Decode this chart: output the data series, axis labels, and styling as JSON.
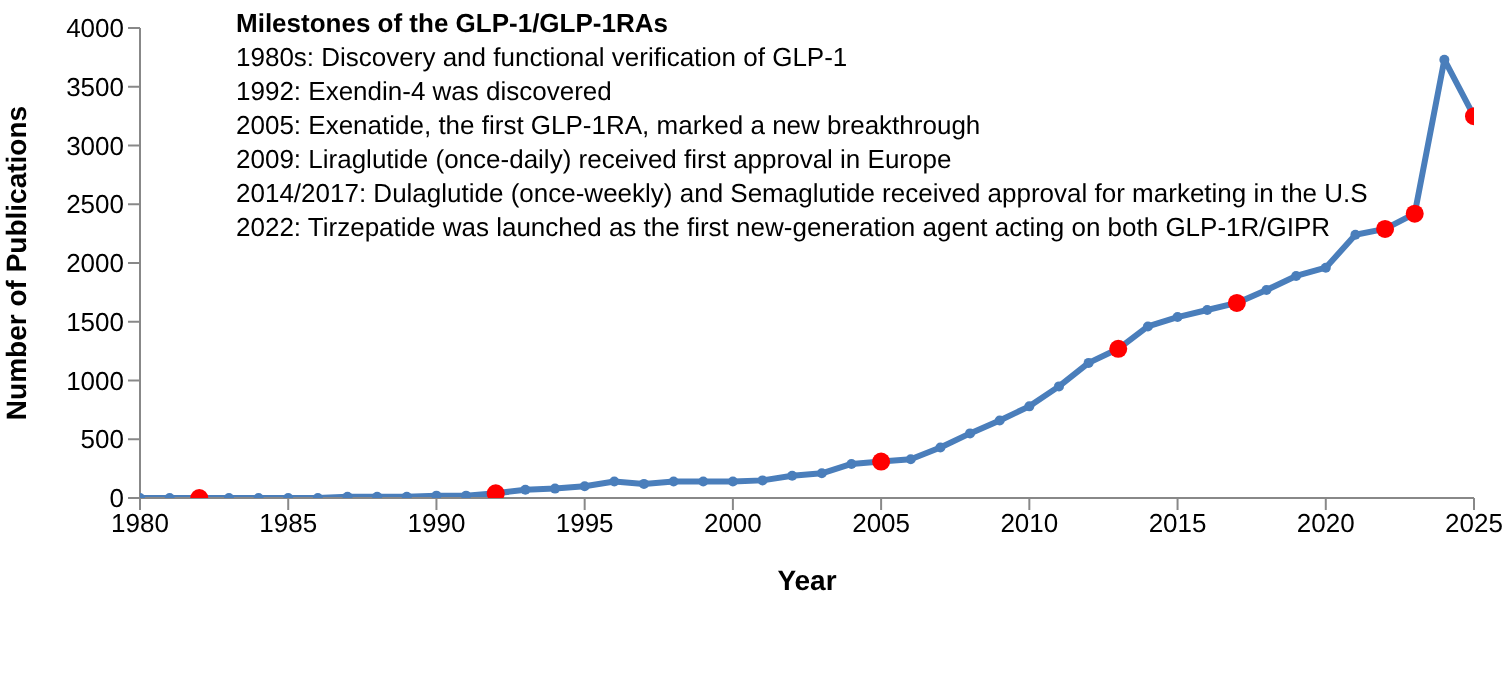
{
  "chart_data": {
    "type": "line",
    "title": "Milestones of the GLP-1/GLP-1RAs",
    "xlabel": "Year",
    "ylabel": "Number of Publications",
    "annotations": [
      "1980s: Discovery and functional verification of GLP-1",
      "1992: Exendin-4 was discovered",
      "2005: Exenatide, the first GLP-1RA, marked a new breakthrough",
      "2009: Liraglutide (once-daily) received first approval in Europe",
      "2014/2017: Dulaglutide (once-weekly) and Semaglutide received approval for marketing in the U.S",
      "2022: Tirzepatide was  launched as the first new-generation agent acting on both GLP-1R/GIPR"
    ],
    "x": [
      1980,
      1981,
      1982,
      1983,
      1984,
      1985,
      1986,
      1987,
      1988,
      1989,
      1990,
      1991,
      1992,
      1993,
      1994,
      1995,
      1996,
      1997,
      1998,
      1999,
      2000,
      2001,
      2002,
      2003,
      2004,
      2005,
      2006,
      2007,
      2008,
      2009,
      2010,
      2011,
      2012,
      2013,
      2014,
      2015,
      2016,
      2017,
      2018,
      2019,
      2020,
      2021,
      2022,
      2023,
      2024,
      2025
    ],
    "series": [
      {
        "color": "#4a7ebb",
        "marker": "circle",
        "values": [
          0,
          0,
          0,
          0,
          0,
          0,
          0,
          10,
          10,
          10,
          20,
          20,
          40,
          70,
          80,
          100,
          140,
          120,
          140,
          140,
          140,
          150,
          190,
          210,
          290,
          310,
          330,
          430,
          550,
          660,
          780,
          950,
          1150,
          1270,
          1460,
          1540,
          1600,
          1660,
          1770,
          1890,
          1960,
          2240,
          2290,
          2420,
          3730,
          3250
        ]
      },
      {
        "type": "scatter",
        "color": "#ff0000",
        "marker": "circle",
        "x": [
          1982,
          1992,
          2005,
          2013,
          2017,
          2022,
          2023,
          2025
        ],
        "values": [
          0,
          40,
          310,
          1270,
          1660,
          2290,
          2420,
          3250
        ]
      }
    ],
    "xlim": [
      1980,
      2025
    ],
    "xticks": [
      1980,
      1985,
      1990,
      1995,
      2000,
      2005,
      2010,
      2015,
      2020,
      2025
    ],
    "ylim": [
      0,
      4000
    ],
    "yticks": [
      0,
      500,
      1000,
      1500,
      2000,
      2500,
      3000,
      3500,
      4000
    ]
  }
}
